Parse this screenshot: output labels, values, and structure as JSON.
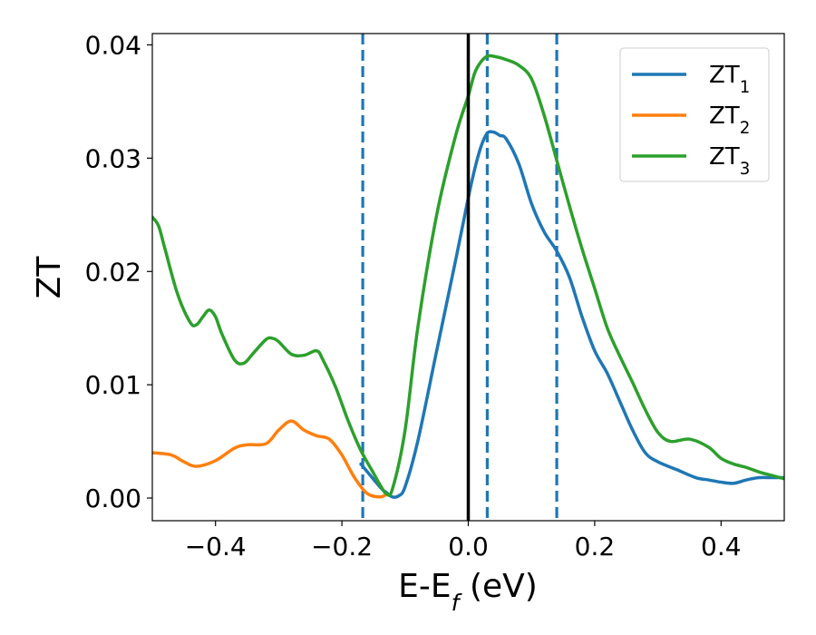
{
  "chart_data": {
    "type": "line",
    "xlabel": "E-E_f (eV)",
    "ylabel": "ZT",
    "xlim": [
      -0.5,
      0.5
    ],
    "ylim": [
      -0.002,
      0.041
    ],
    "xticks": [
      -0.4,
      -0.2,
      0.0,
      0.2,
      0.4
    ],
    "xtick_labels": [
      "−0.4",
      "−0.2",
      "0.0",
      "0.2",
      "0.4"
    ],
    "yticks": [
      0.0,
      0.01,
      0.02,
      0.03,
      0.04
    ],
    "ytick_labels": [
      "0.00",
      "0.01",
      "0.02",
      "0.03",
      "0.04"
    ],
    "grid": false,
    "legend_position": "top-right",
    "fermi_line": {
      "x": 0.0,
      "color": "#000000"
    },
    "vlines": [
      {
        "x": -0.167,
        "color": "#1f77b4",
        "style": "dashed"
      },
      {
        "x": 0.03,
        "color": "#1f77b4",
        "style": "dashed"
      },
      {
        "x": 0.14,
        "color": "#1f77b4",
        "style": "dashed"
      }
    ],
    "series": [
      {
        "name": "ZT_1",
        "name_base": "ZT",
        "name_sub": "1",
        "color": "#1f77b4",
        "x": [
          -0.17,
          -0.14,
          -0.13,
          -0.12,
          -0.11,
          -0.1,
          -0.08,
          -0.05,
          -0.02,
          0.0,
          0.01,
          0.02,
          0.03,
          0.04,
          0.05,
          0.06,
          0.08,
          0.1,
          0.12,
          0.14,
          0.16,
          0.18,
          0.2,
          0.22,
          0.24,
          0.26,
          0.28,
          0.3,
          0.33,
          0.36,
          0.38,
          0.4,
          0.42,
          0.44,
          0.46,
          0.48,
          0.5
        ],
        "y": [
          0.003,
          0.001,
          0.0005,
          0.0001,
          0.0002,
          0.001,
          0.005,
          0.013,
          0.021,
          0.0265,
          0.029,
          0.031,
          0.0322,
          0.0323,
          0.032,
          0.0317,
          0.0295,
          0.026,
          0.0235,
          0.0218,
          0.0195,
          0.016,
          0.013,
          0.011,
          0.0085,
          0.006,
          0.004,
          0.0032,
          0.0025,
          0.0018,
          0.0016,
          0.0014,
          0.0013,
          0.0016,
          0.0018,
          0.0018,
          0.0018
        ]
      },
      {
        "name": "ZT_2",
        "name_base": "ZT",
        "name_sub": "2",
        "color": "#ff7f0e",
        "x": [
          -0.5,
          -0.47,
          -0.45,
          -0.43,
          -0.4,
          -0.37,
          -0.35,
          -0.32,
          -0.3,
          -0.28,
          -0.26,
          -0.24,
          -0.22,
          -0.2,
          -0.18,
          -0.16,
          -0.14,
          -0.13
        ],
        "y": [
          0.004,
          0.0038,
          0.0032,
          0.0028,
          0.0033,
          0.0044,
          0.0047,
          0.0048,
          0.006,
          0.0068,
          0.006,
          0.0055,
          0.0052,
          0.0038,
          0.0018,
          0.0004,
          0.0001,
          0.0003
        ]
      },
      {
        "name": "ZT_3",
        "name_base": "ZT",
        "name_sub": "3",
        "color": "#2ca02c",
        "x": [
          -0.5,
          -0.49,
          -0.48,
          -0.46,
          -0.44,
          -0.43,
          -0.42,
          -0.41,
          -0.4,
          -0.39,
          -0.37,
          -0.355,
          -0.34,
          -0.32,
          -0.31,
          -0.3,
          -0.28,
          -0.26,
          -0.24,
          -0.23,
          -0.21,
          -0.19,
          -0.17,
          -0.15,
          -0.14,
          -0.13,
          -0.12,
          -0.1,
          -0.08,
          -0.05,
          -0.02,
          0.0,
          0.01,
          0.02,
          0.03,
          0.04,
          0.06,
          0.08,
          0.1,
          0.12,
          0.14,
          0.16,
          0.18,
          0.2,
          0.22,
          0.24,
          0.26,
          0.28,
          0.3,
          0.32,
          0.35,
          0.38,
          0.4,
          0.42,
          0.44,
          0.46,
          0.48,
          0.5
        ],
        "y": [
          0.0248,
          0.024,
          0.022,
          0.018,
          0.0155,
          0.0153,
          0.016,
          0.0166,
          0.016,
          0.0145,
          0.0122,
          0.0119,
          0.0128,
          0.014,
          0.0141,
          0.0138,
          0.0127,
          0.0126,
          0.013,
          0.0122,
          0.0098,
          0.0068,
          0.0042,
          0.0022,
          0.0012,
          0.0004,
          0.0008,
          0.006,
          0.015,
          0.025,
          0.032,
          0.0355,
          0.0375,
          0.0385,
          0.039,
          0.039,
          0.0387,
          0.0382,
          0.037,
          0.0338,
          0.0298,
          0.0258,
          0.022,
          0.0185,
          0.015,
          0.0125,
          0.0102,
          0.0078,
          0.0058,
          0.005,
          0.0052,
          0.0045,
          0.0035,
          0.003,
          0.0027,
          0.0023,
          0.002,
          0.0017
        ]
      }
    ]
  }
}
